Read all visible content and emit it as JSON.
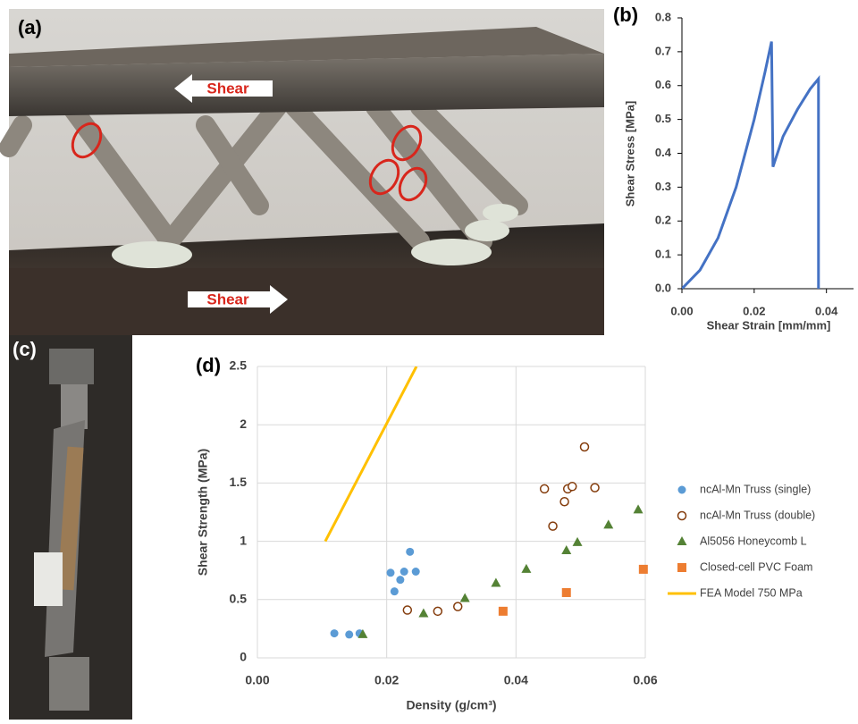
{
  "photo_a": {
    "label": "(a)",
    "arrow_top": "Shear",
    "arrow_bottom": "Shear"
  },
  "photo_c": {
    "label": "(c)"
  },
  "chart_data": [
    {
      "type": "line",
      "title": "(b)",
      "xlabel": "Shear Strain [mm/mm]",
      "ylabel": "Shear Stress [MPa]",
      "color": "#4472c4",
      "grid": false,
      "x": [
        0,
        0.005,
        0.01,
        0.015,
        0.02,
        0.023,
        0.0248,
        0.0252,
        0.028,
        0.032,
        0.0355,
        0.0378,
        0.0378
      ],
      "y": [
        0,
        0.055,
        0.15,
        0.3,
        0.5,
        0.64,
        0.73,
        0.36,
        0.45,
        0.53,
        0.59,
        0.62,
        0
      ],
      "xlim": [
        0,
        0.0475
      ],
      "ylim": [
        0,
        0.8
      ],
      "xticks": [
        {
          "value": 0,
          "label": "0.00"
        },
        {
          "value": 0.02,
          "label": "0.02"
        },
        {
          "value": 0.04,
          "label": "0.04"
        }
      ],
      "yticks": [
        {
          "value": 0,
          "label": "0.0"
        },
        0.1,
        0.2,
        0.3,
        0.4,
        0.5,
        0.6,
        0.7,
        0.8
      ]
    },
    {
      "type": "scatter",
      "title": "(d)",
      "xlabel": "Density (g/cm³)",
      "ylabel": "Shear Strength (MPa)",
      "grid": true,
      "legend": "right",
      "xlim": [
        0,
        0.06
      ],
      "ylim": [
        0,
        2.5
      ],
      "xticks": [
        {
          "value": 0,
          "label": "0.00"
        },
        {
          "value": 0.02,
          "label": "0.02"
        },
        {
          "value": 0.04,
          "label": "0.04"
        },
        {
          "value": 0.06,
          "label": "0.06"
        }
      ],
      "yticks": [
        0,
        0.5,
        1,
        1.5,
        2,
        2.5
      ],
      "series": [
        {
          "name": "ncAl-Mn Truss (single)",
          "color": "#5b9bd5",
          "marker": "circle",
          "x": [
            0.0119,
            0.0142,
            0.0158,
            0.0212,
            0.0206,
            0.0221,
            0.0227,
            0.0236,
            0.0245
          ],
          "y": [
            0.21,
            0.2,
            0.21,
            0.57,
            0.73,
            0.67,
            0.74,
            0.91,
            0.74
          ]
        },
        {
          "name": "ncAl-Mn Truss (double)",
          "color": "#843c0c",
          "marker": "open-circle",
          "x": [
            0.0232,
            0.0279,
            0.031,
            0.0444,
            0.0457,
            0.0475,
            0.048,
            0.0487,
            0.0506,
            0.0522
          ],
          "y": [
            0.41,
            0.4,
            0.44,
            1.45,
            1.13,
            1.34,
            1.45,
            1.47,
            1.81,
            1.46
          ]
        },
        {
          "name": "Al5056 Honeycomb L",
          "color": "#548235",
          "marker": "triangle",
          "x": [
            0.0163,
            0.0257,
            0.0321,
            0.0369,
            0.0416,
            0.0478,
            0.0495,
            0.0543,
            0.0589
          ],
          "y": [
            0.2,
            0.38,
            0.51,
            0.64,
            0.76,
            0.92,
            0.99,
            1.14,
            1.27
          ]
        },
        {
          "name": "Closed-cell PVC Foam",
          "color": "#ed7d31",
          "marker": "square",
          "x": [
            0.038,
            0.0478,
            0.0597
          ],
          "y": [
            0.4,
            0.56,
            0.76
          ]
        },
        {
          "name": "FEA Model 750 MPa",
          "color": "#ffc000",
          "marker": "line",
          "x": [
            0.0105,
            0.0246
          ],
          "y": [
            1.0,
            2.5
          ]
        }
      ]
    }
  ]
}
